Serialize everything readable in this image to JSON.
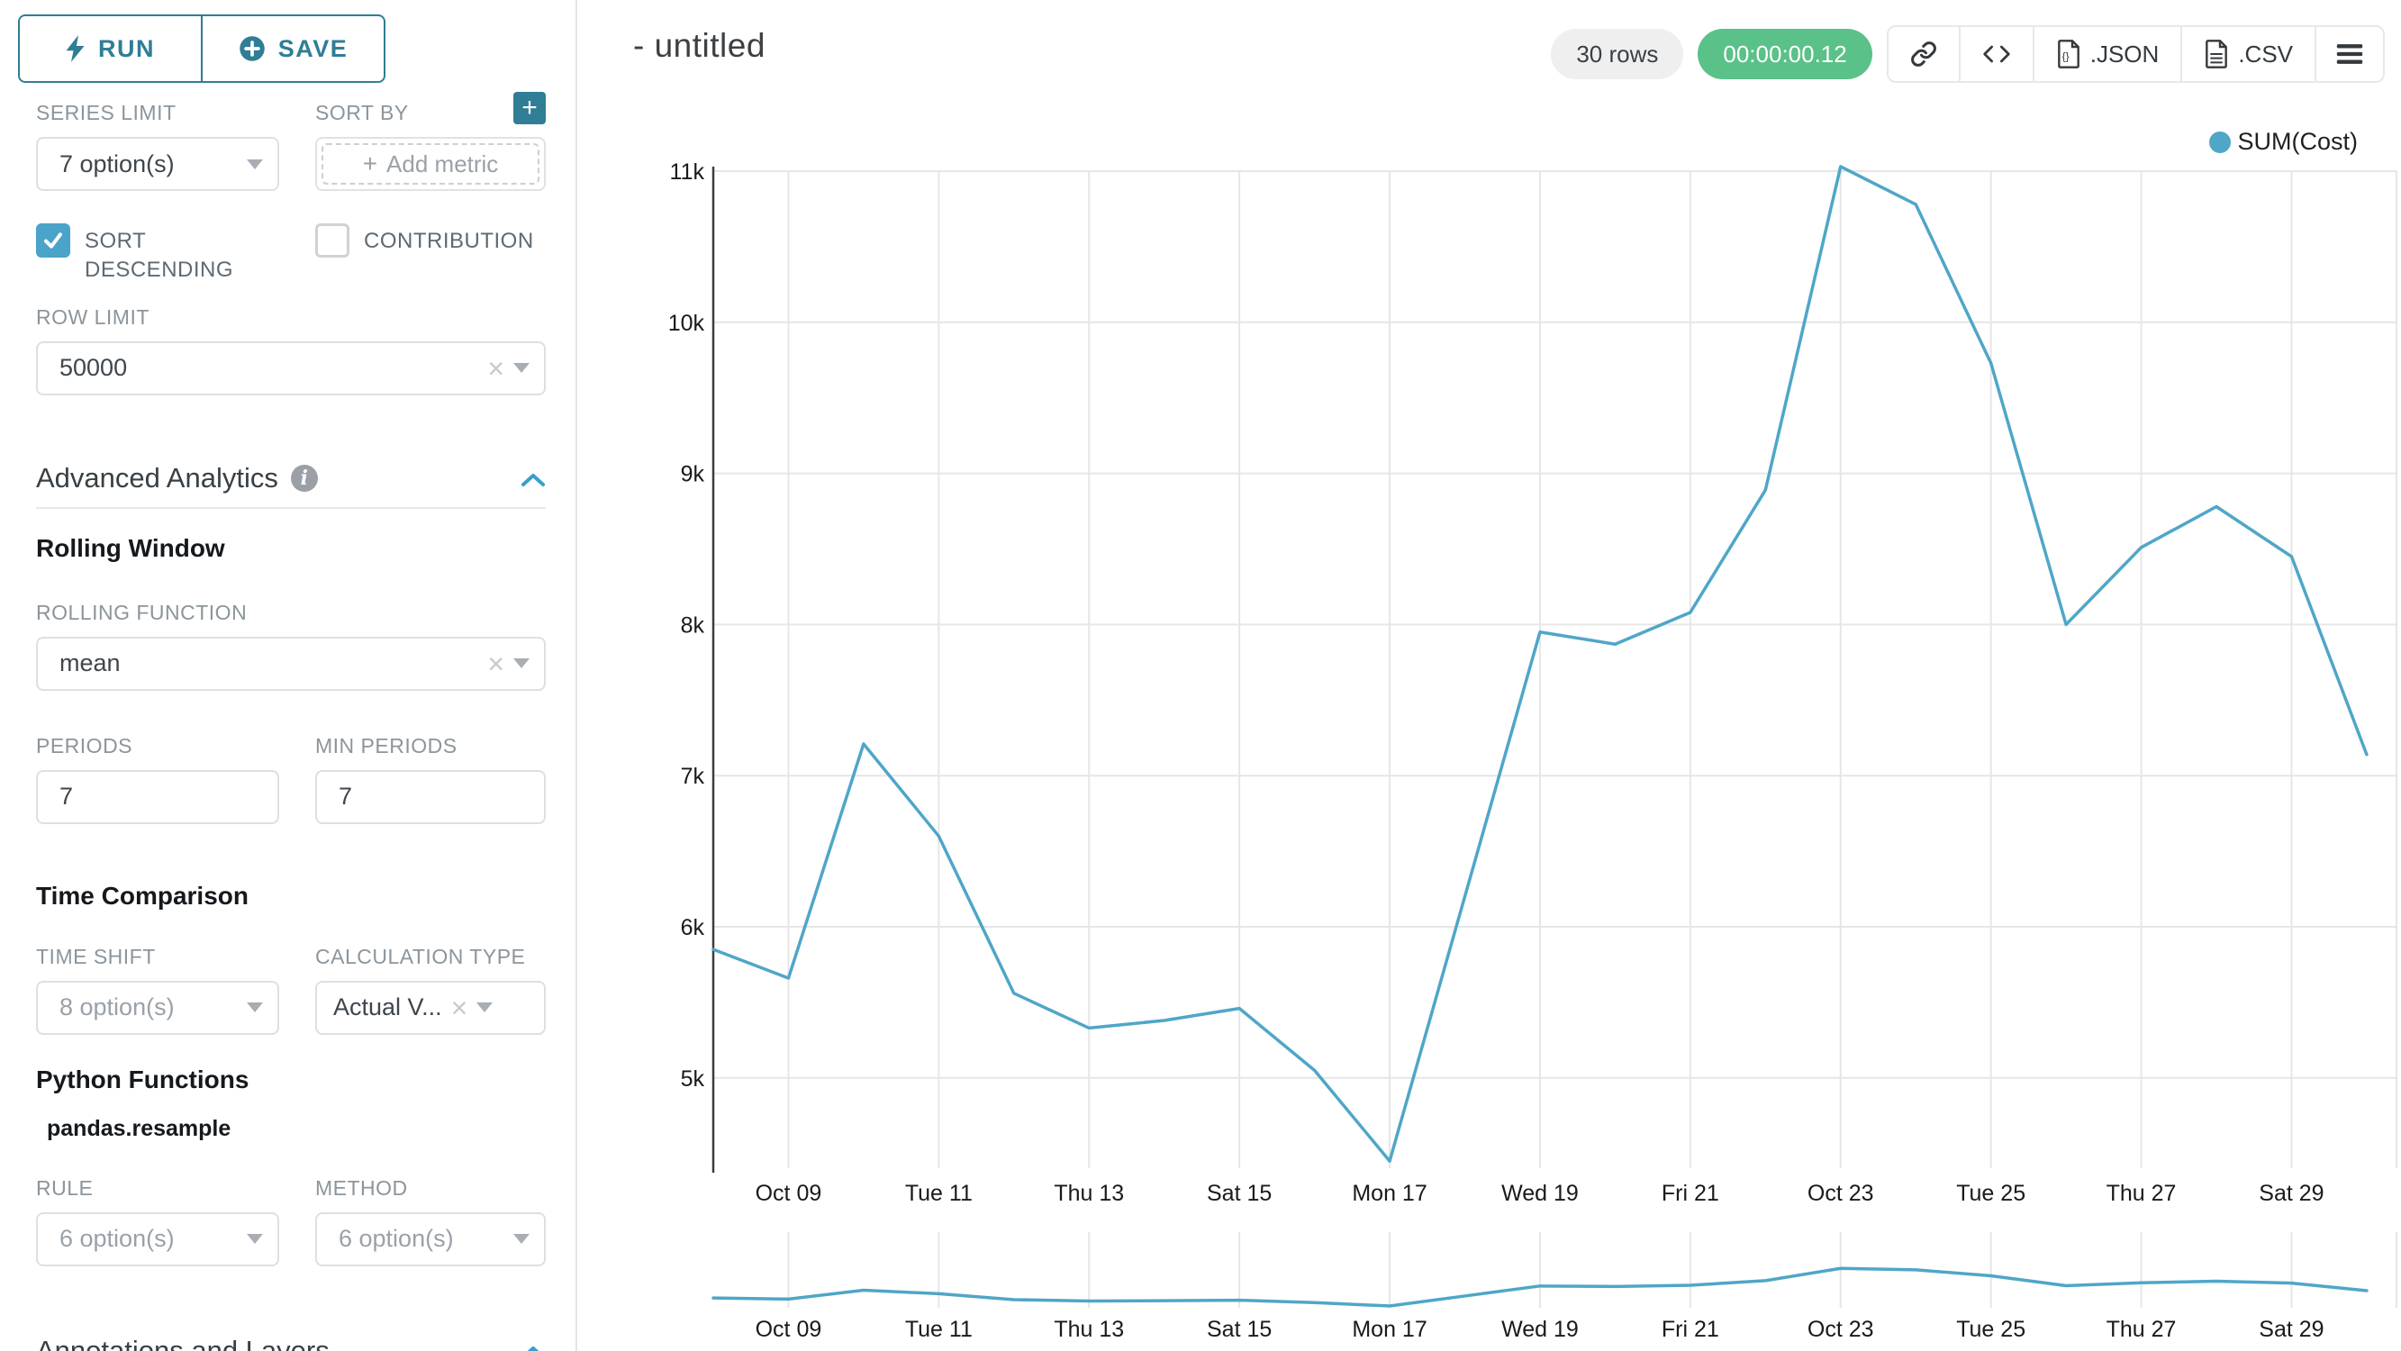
{
  "sidebar": {
    "run_label": "RUN",
    "save_label": "SAVE",
    "series_limit_label": "SERIES LIMIT",
    "series_limit_value": "7 option(s)",
    "sort_by_label": "SORT BY",
    "sort_by_placeholder": "Add metric",
    "sort_descending_label": "SORT DESCENDING",
    "contribution_label": "CONTRIBUTION",
    "row_limit_label": "ROW LIMIT",
    "row_limit_value": "50000",
    "advanced_analytics_title": "Advanced Analytics",
    "rolling_window_title": "Rolling Window",
    "rolling_function_label": "ROLLING FUNCTION",
    "rolling_function_value": "mean",
    "periods_label": "PERIODS",
    "periods_value": "7",
    "min_periods_label": "MIN PERIODS",
    "min_periods_value": "7",
    "time_comparison_title": "Time Comparison",
    "time_shift_label": "TIME SHIFT",
    "time_shift_value": "8 option(s)",
    "calculation_type_label": "CALCULATION TYPE",
    "calculation_type_value": "Actual V...",
    "python_functions_title": "Python Functions",
    "python_functions_subtitle": "pandas.resample",
    "rule_label": "RULE",
    "rule_value": "6 option(s)",
    "method_label": "METHOD",
    "method_value": "6 option(s)",
    "annotations_title": "Annotations and Layers"
  },
  "header": {
    "title": "- untitled",
    "rows_badge": "30 rows",
    "timer_badge": "00:00:00.12",
    "json_label": ".JSON",
    "csv_label": ".CSV"
  },
  "colors": {
    "accent_teal": "#2f7e95",
    "checkbox_blue": "#4aa3c8",
    "chevron_blue": "#3d9fc9",
    "timer_green": "#5ac189",
    "line_blue": "#4fa6c7",
    "gridline": "#e6e6e6",
    "axis": "#3c3c3c",
    "tick_text": "#1a1a1a"
  },
  "chart_data": {
    "type": "line",
    "title": "",
    "xlabel": "",
    "ylabel": "",
    "legend_position": "top-right",
    "grid": true,
    "focus_chart": true,
    "legend": [
      {
        "label": "SUM(Cost)",
        "color": "#4fa6c7"
      }
    ],
    "x": [
      "Oct 08",
      "Oct 09",
      "Oct 10",
      "Oct 11",
      "Oct 12",
      "Oct 13",
      "Oct 14",
      "Oct 15",
      "Oct 16",
      "Oct 17",
      "Oct 18",
      "Oct 19",
      "Oct 20",
      "Oct 21",
      "Oct 22",
      "Oct 23",
      "Oct 24",
      "Oct 25",
      "Oct 26",
      "Oct 27",
      "Oct 28",
      "Oct 29",
      "Oct 30"
    ],
    "series": [
      {
        "name": "SUM(Cost)",
        "values": [
          5850,
          5660,
          7210,
          6600,
          5560,
          5330,
          5380,
          5460,
          5050,
          4450,
          6200,
          7950,
          7870,
          8080,
          8890,
          11030,
          10780,
          9730,
          8000,
          8510,
          8780,
          8450,
          7140
        ]
      }
    ],
    "ylim": [
      4400,
      11100
    ],
    "y_ticks": [
      5000,
      6000,
      7000,
      8000,
      9000,
      10000,
      11000
    ],
    "y_tick_labels": [
      "5k",
      "6k",
      "7k",
      "8k",
      "9k",
      "10k",
      "11k"
    ],
    "x_tick_indices": [
      1,
      3,
      5,
      7,
      9,
      11,
      13,
      15,
      17,
      19,
      21
    ],
    "x_tick_labels": [
      "Oct 09",
      "Tue 11",
      "Thu 13",
      "Sat 15",
      "Mon 17",
      "Wed 19",
      "Fri 21",
      "Oct 23",
      "Tue 25",
      "Thu 27",
      "Sat 29"
    ]
  }
}
